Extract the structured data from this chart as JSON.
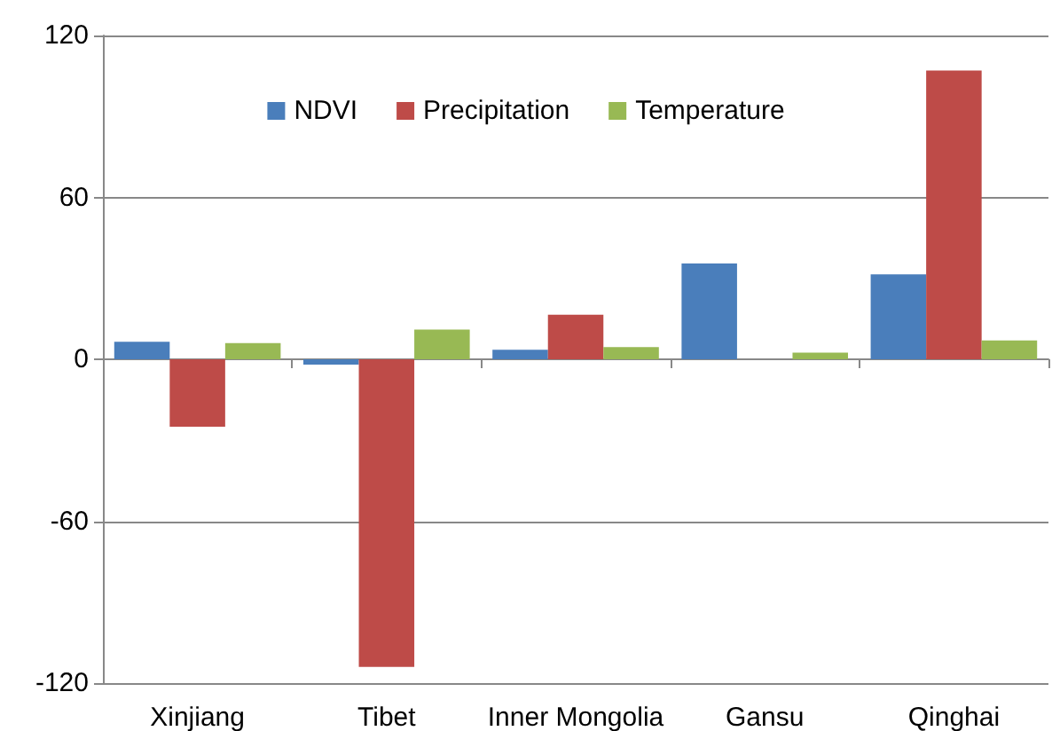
{
  "chart_data": {
    "type": "bar",
    "categories": [
      "Xinjiang",
      "Tibet",
      "Inner Mongolia",
      "Gansu",
      "Qinghai"
    ],
    "series": [
      {
        "name": "NDVI",
        "color": "#4a7ebb",
        "values": [
          6.5,
          -2,
          3.5,
          35.5,
          31.5
        ]
      },
      {
        "name": "Precipitation",
        "color": "#be4b48",
        "values": [
          -25,
          -114,
          16.5,
          null,
          107
        ]
      },
      {
        "name": "Temperature",
        "color": "#98b954",
        "values": [
          6,
          11,
          4.5,
          2.5,
          7
        ]
      }
    ],
    "ylim": [
      -120,
      120
    ],
    "yticks": [
      -120,
      -60,
      0,
      60,
      120
    ],
    "grid": "y",
    "legend": "top"
  }
}
